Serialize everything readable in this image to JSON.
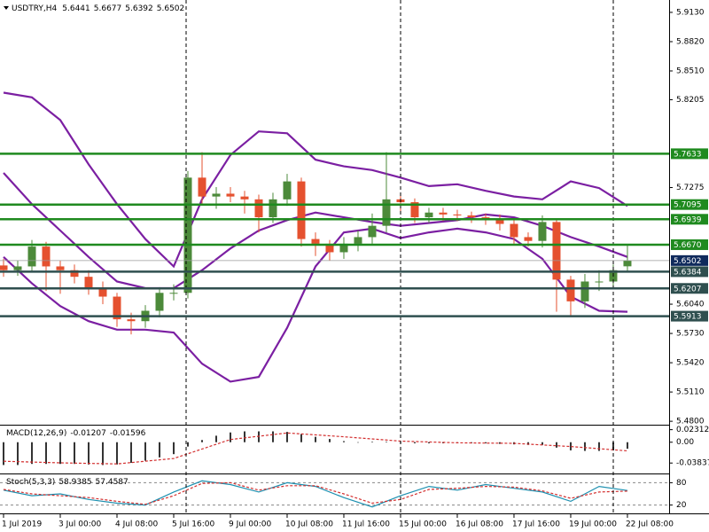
{
  "chart_data": [
    {
      "type": "candlestick",
      "header": {
        "symbol": "USDTRY,H4",
        "open": 5.6441,
        "high": 5.6677,
        "low": 5.6392,
        "close": 5.6502
      },
      "up_color": "#4c8a3a",
      "down_color": "#e5512f",
      "xlim": [
        -0.25,
        46.94
      ],
      "xticks": [
        {
          "value": 0,
          "label": "1 Jul 2019"
        },
        {
          "value": 4,
          "label": "3 Jul 00:00"
        },
        {
          "value": 8,
          "label": "4 Jul 08:00"
        },
        {
          "value": 12,
          "label": "5 Jul 16:00"
        },
        {
          "value": 16,
          "label": "9 Jul 00:00"
        },
        {
          "value": 20,
          "label": "10 Jul 08:00"
        },
        {
          "value": 24,
          "label": "11 Jul 16:00"
        },
        {
          "value": 28,
          "label": "15 Jul 00:00"
        },
        {
          "value": 32,
          "label": "16 Jul 08:00"
        },
        {
          "value": 36,
          "label": "17 Jul 16:00"
        },
        {
          "value": 40,
          "label": "19 Jul 00:00"
        },
        {
          "value": 44,
          "label": "22 Jul 08:00"
        }
      ],
      "ylim": [
        5.4773,
        5.9261
      ],
      "yticks": [
        {
          "value": 5.913,
          "label": "5.9130"
        },
        {
          "value": 5.882,
          "label": "5.8820"
        },
        {
          "value": 5.851,
          "label": "5.8510"
        },
        {
          "value": 5.8205,
          "label": "5.8205"
        },
        {
          "value": 5.7275,
          "label": "5.7275"
        },
        {
          "value": 5.604,
          "label": "5.6040"
        },
        {
          "value": 5.573,
          "label": "5.5730"
        },
        {
          "value": 5.542,
          "label": "5.5420"
        },
        {
          "value": 5.511,
          "label": "5.5110"
        },
        {
          "value": 5.48,
          "label": "5.4800"
        }
      ],
      "open": [
        5.645,
        5.64,
        5.644,
        5.665,
        5.644,
        5.64,
        5.633,
        5.621,
        5.612,
        5.588,
        5.586,
        5.597,
        5.616,
        5.616,
        5.738,
        5.718,
        5.721,
        5.718,
        5.715,
        5.696,
        5.715,
        5.734,
        5.673,
        5.668,
        5.659,
        5.668,
        5.675,
        5.687,
        5.715,
        5.712,
        5.696,
        5.701,
        5.699,
        5.698,
        5.696,
        5.694,
        5.689,
        5.675,
        5.671,
        5.691,
        5.63,
        5.607,
        5.628,
        5.628,
        5.6441
      ],
      "high": [
        5.652,
        5.65,
        5.672,
        5.67,
        5.65,
        5.646,
        5.64,
        5.628,
        5.616,
        5.595,
        5.603,
        5.622,
        5.625,
        5.745,
        5.765,
        5.728,
        5.728,
        5.724,
        5.72,
        5.722,
        5.742,
        5.738,
        5.68,
        5.672,
        5.675,
        5.682,
        5.7,
        5.765,
        5.722,
        5.716,
        5.706,
        5.706,
        5.704,
        5.702,
        5.7,
        5.699,
        5.694,
        5.68,
        5.698,
        5.694,
        5.634,
        5.636,
        5.64,
        5.646,
        5.6677
      ],
      "low": [
        5.633,
        5.634,
        5.638,
        5.618,
        5.615,
        5.626,
        5.614,
        5.604,
        5.58,
        5.572,
        5.579,
        5.59,
        5.608,
        5.61,
        5.71,
        5.705,
        5.712,
        5.7,
        5.68,
        5.69,
        5.708,
        5.665,
        5.655,
        5.65,
        5.652,
        5.66,
        5.668,
        5.68,
        5.7,
        5.69,
        5.69,
        5.692,
        5.692,
        5.69,
        5.688,
        5.682,
        5.668,
        5.665,
        5.664,
        5.596,
        5.592,
        5.6,
        5.618,
        5.622,
        5.6392
      ],
      "close": [
        5.64,
        5.644,
        5.665,
        5.644,
        5.64,
        5.633,
        5.621,
        5.612,
        5.588,
        5.586,
        5.597,
        5.616,
        5.616,
        5.738,
        5.718,
        5.721,
        5.718,
        5.715,
        5.696,
        5.715,
        5.734,
        5.673,
        5.668,
        5.659,
        5.668,
        5.675,
        5.687,
        5.715,
        5.712,
        5.696,
        5.701,
        5.699,
        5.698,
        5.696,
        5.694,
        5.689,
        5.675,
        5.671,
        5.691,
        5.63,
        5.607,
        5.628,
        5.628,
        5.64,
        5.6502
      ],
      "series": [
        {
          "color": "#7b1fa2",
          "x": [
            0,
            2,
            4,
            6,
            8,
            10,
            12,
            14,
            16,
            18,
            20,
            22,
            24,
            26,
            28,
            30,
            32,
            34,
            36,
            38,
            40,
            42,
            44
          ],
          "values": [
            5.828,
            5.823,
            5.799,
            5.752,
            5.71,
            5.673,
            5.644,
            5.715,
            5.762,
            5.787,
            5.785,
            5.757,
            5.75,
            5.746,
            5.738,
            5.729,
            5.731,
            5.724,
            5.718,
            5.715,
            5.734,
            5.727,
            5.708
          ]
        },
        {
          "color": "#7b1fa2",
          "x": [
            0,
            2,
            4,
            6,
            8,
            10,
            12,
            14,
            16,
            18,
            20,
            22,
            24,
            26,
            28,
            30,
            32,
            34,
            36,
            38,
            40,
            42,
            44
          ],
          "values": [
            5.743,
            5.71,
            5.682,
            5.654,
            5.628,
            5.621,
            5.621,
            5.64,
            5.663,
            5.682,
            5.693,
            5.701,
            5.696,
            5.691,
            5.687,
            5.69,
            5.693,
            5.699,
            5.696,
            5.687,
            5.675,
            5.665,
            5.654
          ]
        },
        {
          "color": "#7b1fa2",
          "x": [
            0,
            2,
            4,
            6,
            8,
            10,
            12,
            14,
            16,
            18,
            20,
            22,
            24,
            26,
            28,
            30,
            32,
            34,
            36,
            38,
            40,
            42,
            44
          ],
          "values": [
            5.654,
            5.626,
            5.602,
            5.586,
            5.577,
            5.577,
            5.574,
            5.541,
            5.522,
            5.527,
            5.579,
            5.644,
            5.68,
            5.684,
            5.674,
            5.68,
            5.684,
            5.68,
            5.673,
            5.652,
            5.612,
            5.597,
            5.596
          ]
        }
      ],
      "levels": [
        {
          "value": 5.7633,
          "label": "5.7633",
          "color": "#1f8a1f"
        },
        {
          "value": 5.7095,
          "label": "5.7095",
          "color": "#1f8a1f"
        },
        {
          "value": 5.6939,
          "label": "5.6939",
          "color": "#1f8a1f"
        },
        {
          "value": 5.667,
          "label": "5.6670",
          "color": "#1f8a1f"
        },
        {
          "value": 5.6384,
          "label": "5.6384",
          "color": "#2f4f4f"
        },
        {
          "value": 5.6207,
          "label": "5.6207",
          "color": "#2f4f4f"
        },
        {
          "value": 5.5913,
          "label": "5.5913",
          "color": "#2f4f4f"
        }
      ],
      "last_price": {
        "value": 5.6502,
        "label": "5.6502",
        "color": "#0f2a5c"
      }
    },
    {
      "type": "macd",
      "label": "MACD(12,26,9)",
      "current": [
        -0.01207,
        -0.01596
      ],
      "ylim": [
        -0.056,
        0.029
      ],
      "yticks": [
        0.02312,
        {
          "value": 0,
          "label": "0.00"
        },
        -0.03837
      ],
      "color": "#333333",
      "values": [
        -0.042,
        -0.042,
        -0.04,
        -0.04,
        -0.04,
        -0.04,
        -0.041,
        -0.042,
        -0.041,
        -0.038,
        -0.034,
        -0.028,
        -0.022,
        -0.008,
        0.004,
        0.012,
        0.018,
        0.02,
        0.02,
        0.02,
        0.019,
        0.015,
        0.01,
        0.006,
        0.002,
        0.0,
        0.001,
        0.001,
        -0.001,
        -0.002,
        -0.002,
        -0.002,
        -0.002,
        -0.002,
        -0.002,
        -0.003,
        -0.004,
        -0.005,
        -0.005,
        -0.01,
        -0.015,
        -0.016,
        -0.016,
        -0.015,
        -0.012
      ],
      "series": [
        {
          "color": "#d32f2f",
          "x": [
            0,
            4,
            8,
            12,
            16,
            20,
            24,
            28,
            32,
            36,
            40,
            44
          ],
          "values": [
            -0.035,
            -0.038,
            -0.04,
            -0.03,
            0.005,
            0.017,
            0.01,
            0.002,
            -0.001,
            -0.002,
            -0.008,
            -0.01596
          ]
        }
      ]
    },
    {
      "type": "stochastic",
      "label": "Stoch(5,3,3)",
      "current": [
        58.9385,
        57.4587
      ],
      "ylim": [
        0,
        100
      ],
      "yticks": [
        80,
        20
      ],
      "grid": true,
      "series": [
        {
          "color": "#1e90b0",
          "x": [
            0,
            2,
            4,
            6,
            8,
            10,
            12,
            14,
            16,
            18,
            20,
            22,
            24,
            26,
            28,
            30,
            32,
            34,
            36,
            38,
            40,
            42,
            44
          ],
          "values": [
            60,
            45,
            50,
            35,
            25,
            20,
            55,
            85,
            75,
            55,
            80,
            70,
            40,
            15,
            45,
            70,
            60,
            75,
            65,
            55,
            30,
            70,
            58.9385
          ]
        },
        {
          "color": "#d32f2f",
          "x": [
            0,
            2,
            4,
            6,
            8,
            10,
            12,
            14,
            16,
            18,
            20,
            22,
            24,
            26,
            28,
            30,
            32,
            34,
            36,
            38,
            40,
            42,
            44
          ],
          "values": [
            62,
            50,
            45,
            40,
            30,
            22,
            45,
            78,
            80,
            60,
            72,
            72,
            50,
            25,
            35,
            62,
            65,
            70,
            68,
            58,
            38,
            55,
            57.4587
          ]
        }
      ]
    }
  ]
}
